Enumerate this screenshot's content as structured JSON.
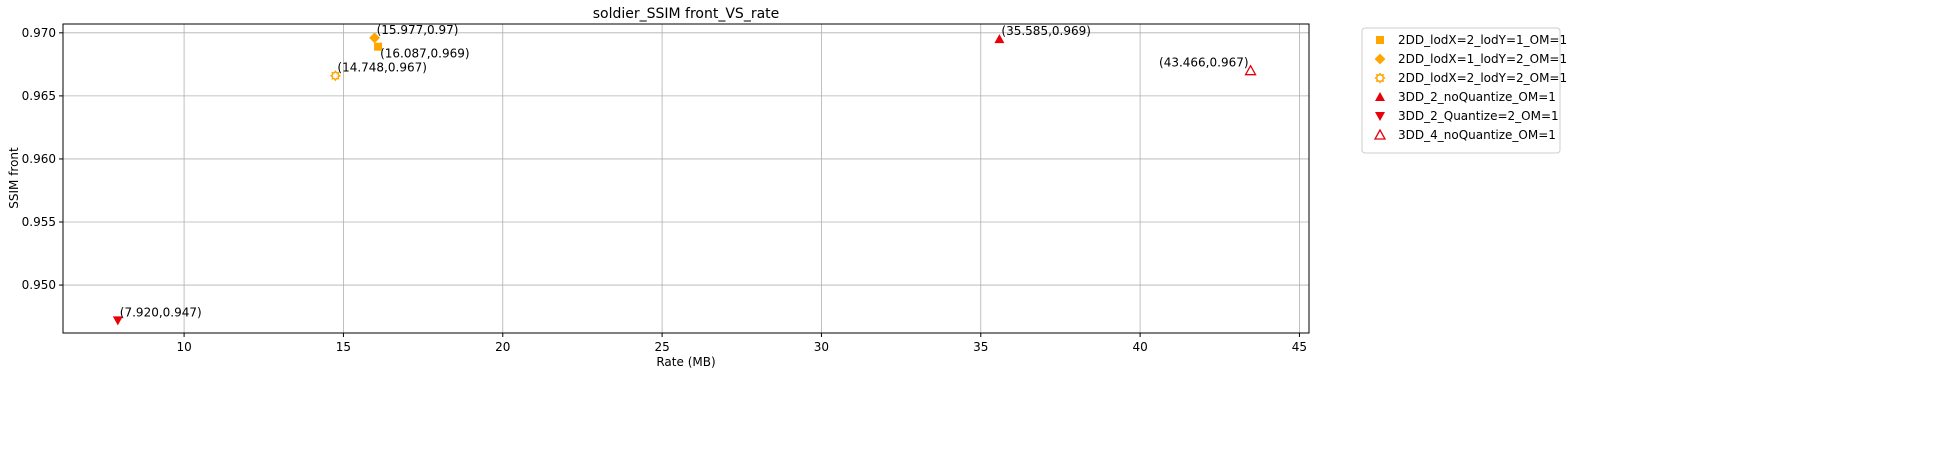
{
  "chart_data": {
    "type": "scatter",
    "title": "soldier_SSIM front_VS_rate",
    "xlabel": "Rate (MB)",
    "ylabel": "SSIM front",
    "xlim": [
      6.2,
      45.3
    ],
    "ylim": [
      0.9462,
      0.9707
    ],
    "xticks": [
      10,
      15,
      20,
      25,
      30,
      35,
      40,
      45
    ],
    "yticks": [
      0.95,
      0.955,
      0.96,
      0.965,
      0.97
    ],
    "ytick_labels": [
      "0.950",
      "0.955",
      "0.960",
      "0.965",
      "0.970"
    ],
    "grid": true,
    "legend_position": "outside-top-right",
    "series": [
      {
        "name": "2DD_lodX=2_lodY=1_OM=1",
        "marker": "square",
        "color": "#FFA500",
        "points": [
          {
            "x": 16.087,
            "y": 0.9689,
            "label": "(16.087,0.969)",
            "label_pos": "below-right"
          }
        ]
      },
      {
        "name": "2DD_lodX=1_lodY=2_OM=1",
        "marker": "diamond",
        "color": "#FFA500",
        "points": [
          {
            "x": 15.977,
            "y": 0.9696,
            "label": "(15.977,0.97)",
            "label_pos": "above-right"
          }
        ]
      },
      {
        "name": "2DD_lodX=2_lodY=2_OM=1",
        "marker": "gear",
        "color": "#FFA500",
        "points": [
          {
            "x": 14.748,
            "y": 0.9666,
            "label": "(14.748,0.967)",
            "label_pos": "above-right"
          }
        ]
      },
      {
        "name": "3DD_2_noQuantize_OM=1",
        "marker": "triangle-up",
        "color": "#E8000B",
        "points": [
          {
            "x": 35.585,
            "y": 0.9695,
            "label": "(35.585,0.969)",
            "label_pos": "above-right"
          }
        ]
      },
      {
        "name": "3DD_2_Quantize=2_OM=1",
        "marker": "triangle-down",
        "color": "#E8000B",
        "points": [
          {
            "x": 7.92,
            "y": 0.9472,
            "label": "(7.920,0.947)",
            "label_pos": "above-right"
          }
        ]
      },
      {
        "name": "3DD_4_noQuantize_OM=1",
        "marker": "triangle-up-open",
        "color": "#E8000B",
        "points": [
          {
            "x": 43.466,
            "y": 0.967,
            "label": "(43.466,0.967)",
            "label_pos": "above-left"
          }
        ]
      }
    ]
  }
}
